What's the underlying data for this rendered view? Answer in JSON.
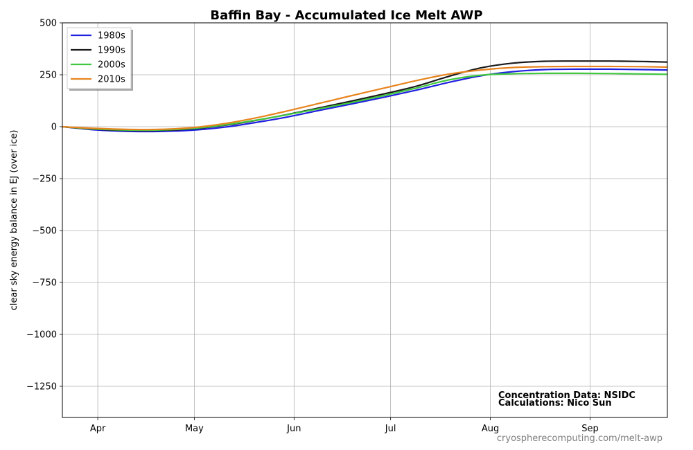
{
  "chart_data": {
    "type": "line",
    "title": "Baffin Bay - Accumulated Ice Melt AWP",
    "xlabel": "",
    "ylabel": "clear sky energy balance in  EJ (over ice)",
    "x_tick_labels": [
      "Apr",
      "May",
      "Jun",
      "Jul",
      "Aug",
      "Sep"
    ],
    "x_tick_days": [
      91,
      121,
      152,
      182,
      213,
      244
    ],
    "xlim_days": [
      80,
      268
    ],
    "ylim": [
      -1400,
      500
    ],
    "y_ticks": [
      500,
      250,
      0,
      -250,
      -500,
      -750,
      -1000,
      -1250
    ],
    "y_tick_labels": [
      "500",
      "250",
      "0",
      "−250",
      "−500",
      "−750",
      "−1000",
      "−1250"
    ],
    "grid": true,
    "legend_position": "top-left",
    "x_days": [
      80,
      90,
      100,
      110,
      120,
      130,
      140,
      150,
      160,
      170,
      180,
      190,
      200,
      210,
      220,
      230,
      240,
      250,
      260,
      268
    ],
    "series": [
      {
        "name": "1980s",
        "color": "#2020e0",
        "values": [
          0,
          -15,
          -22,
          -23,
          -17,
          -3,
          20,
          47,
          79,
          110,
          142,
          176,
          213,
          245,
          265,
          275,
          277,
          277,
          275,
          273
        ]
      },
      {
        "name": "1990s",
        "color": "#1a1a1a",
        "values": [
          0,
          -12,
          -18,
          -18,
          -11,
          6,
          30,
          59,
          91,
          124,
          158,
          195,
          242,
          283,
          306,
          315,
          316,
          316,
          314,
          311
        ]
      },
      {
        "name": "2000s",
        "color": "#40c840",
        "values": [
          0,
          -11,
          -16,
          -16,
          -9,
          8,
          31,
          58,
          87,
          117,
          150,
          186,
          225,
          248,
          255,
          257,
          257,
          256,
          254,
          252
        ]
      },
      {
        "name": "2010s",
        "color": "#e8841f",
        "values": [
          0,
          -8,
          -13,
          -13,
          -5,
          14,
          42,
          76,
          113,
          150,
          186,
          222,
          253,
          273,
          285,
          289,
          290,
          290,
          289,
          287
        ]
      }
    ],
    "annotations": [
      "Concentration Data: NSIDC",
      "Calculations: Nico Sun"
    ],
    "watermark": "cryospherecomputing.com/melt-awp"
  }
}
